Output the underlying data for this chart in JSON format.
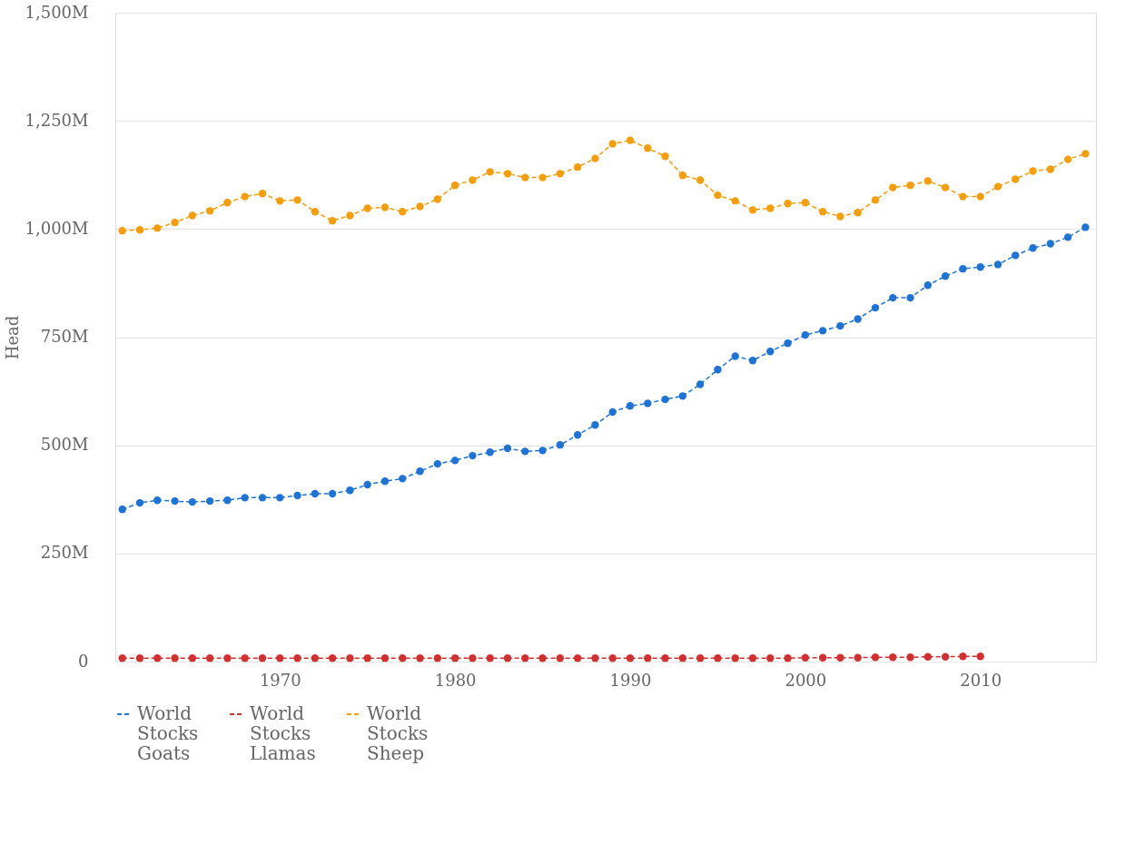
{
  "chart_data": {
    "type": "line",
    "ylabel": "Head",
    "x": [
      1961,
      1962,
      1963,
      1964,
      1965,
      1966,
      1967,
      1968,
      1969,
      1970,
      1971,
      1972,
      1973,
      1974,
      1975,
      1976,
      1977,
      1978,
      1979,
      1980,
      1981,
      1982,
      1983,
      1984,
      1985,
      1986,
      1987,
      1988,
      1989,
      1990,
      1991,
      1992,
      1993,
      1994,
      1995,
      1996,
      1997,
      1998,
      1999,
      2000,
      2001,
      2002,
      2003,
      2004,
      2005,
      2006,
      2007,
      2008,
      2009,
      2010,
      2011,
      2012,
      2013,
      2014,
      2015,
      2016
    ],
    "series": [
      {
        "name": "World Stocks Goats",
        "color": "#1e74d6",
        "values": [
          352,
          367,
          373,
          371,
          369,
          371,
          373,
          379,
          379,
          379,
          384,
          388,
          388,
          396,
          409,
          417,
          423,
          440,
          457,
          465,
          476,
          484,
          493,
          486,
          488,
          501,
          524,
          547,
          577,
          591,
          597,
          606,
          614,
          641,
          675,
          706,
          696,
          717,
          736,
          755,
          765,
          776,
          792,
          818,
          841,
          841,
          870,
          891,
          908,
          912,
          918,
          939,
          956,
          966,
          981,
          1004
        ]
      },
      {
        "name": "World Stocks Llamas",
        "color": "#d32f2f",
        "values": [
          8,
          8,
          8,
          8,
          8,
          8,
          8,
          8,
          8,
          8,
          8,
          8,
          8,
          8,
          8,
          8,
          8,
          8,
          8,
          8,
          8,
          8,
          8,
          8,
          8,
          8,
          8,
          8,
          8,
          8,
          8,
          8,
          8,
          8,
          8,
          8,
          8,
          8,
          8,
          9,
          9,
          9,
          9,
          10,
          10,
          10,
          11,
          11,
          12,
          12,
          null,
          null,
          null,
          null,
          null,
          null
        ]
      },
      {
        "name": "World Stocks Sheep",
        "color": "#f59e0b",
        "values": [
          996,
          998,
          1002,
          1015,
          1031,
          1042,
          1061,
          1075,
          1082,
          1065,
          1067,
          1040,
          1019,
          1031,
          1048,
          1050,
          1040,
          1052,
          1069,
          1101,
          1113,
          1132,
          1128,
          1119,
          1119,
          1128,
          1143,
          1163,
          1197,
          1205,
          1187,
          1168,
          1124,
          1113,
          1078,
          1065,
          1044,
          1048,
          1059,
          1061,
          1040,
          1029,
          1038,
          1067,
          1096,
          1101,
          1111,
          1096,
          1075,
          1075,
          1098,
          1115,
          1134,
          1138,
          1161,
          1174
        ]
      }
    ],
    "xlim": [
      1960.6,
      2016.6
    ],
    "xticks": [
      1970,
      1980,
      1990,
      2000,
      2010
    ],
    "ylim": [
      0,
      1500
    ],
    "yticks": [
      0,
      {
        "value": 250,
        "label": "250M"
      },
      {
        "value": 500,
        "label": "500M"
      },
      {
        "value": 750,
        "label": "750M"
      },
      {
        "value": 1000,
        "label": "1,000M"
      },
      {
        "value": 1250,
        "label": "1,250M"
      },
      {
        "value": 1500,
        "label": "1,500M"
      }
    ],
    "grid": "y",
    "legend": "bottom",
    "marker": "circle",
    "line_style": "dashed"
  }
}
